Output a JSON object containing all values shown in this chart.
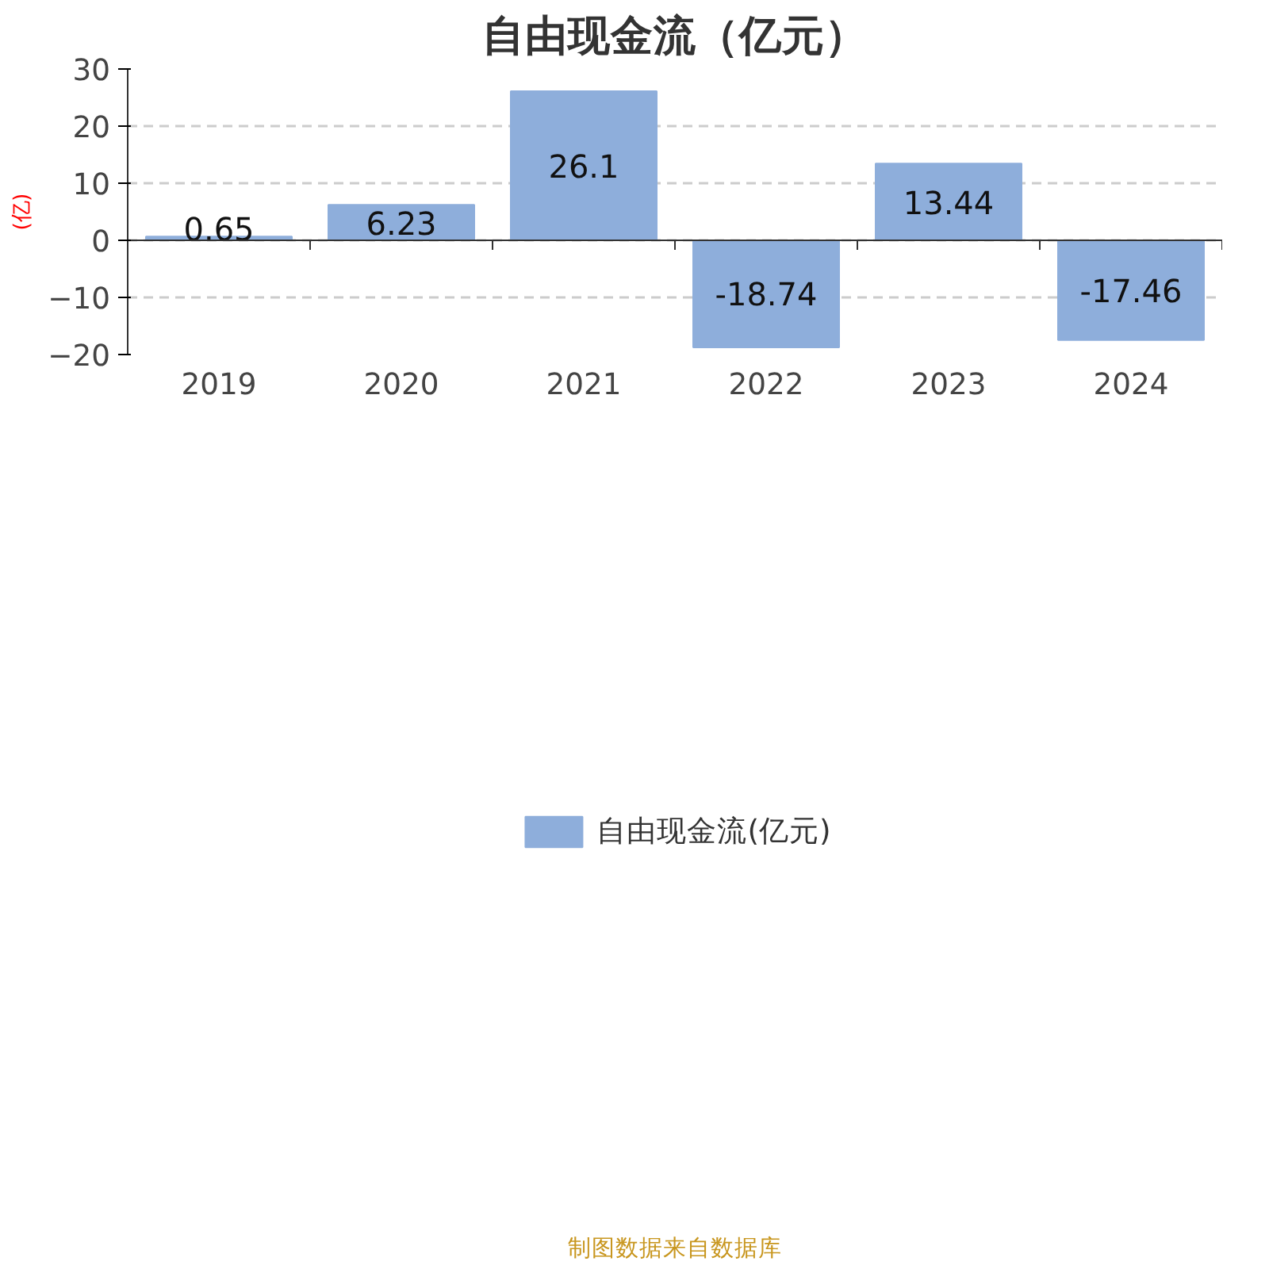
{
  "chart_data": {
    "type": "bar",
    "title": "自由现金流（亿元）",
    "ylabel": "(亿)",
    "categories": [
      "2019",
      "2020",
      "2021",
      "2022",
      "2023",
      "2024"
    ],
    "series": [
      {
        "name": "自由现金流(亿元)",
        "color": "#8eaedb",
        "values": [
          0.65,
          6.23,
          26.1,
          -18.74,
          13.44,
          -17.46
        ]
      }
    ],
    "ylim": [
      -20,
      30
    ],
    "yticks": [
      -20,
      -10,
      0,
      10,
      20,
      30
    ],
    "grid": "y",
    "legend": "bottom",
    "data_labels": true,
    "annotations": [
      "制图数据来自数据库"
    ]
  }
}
